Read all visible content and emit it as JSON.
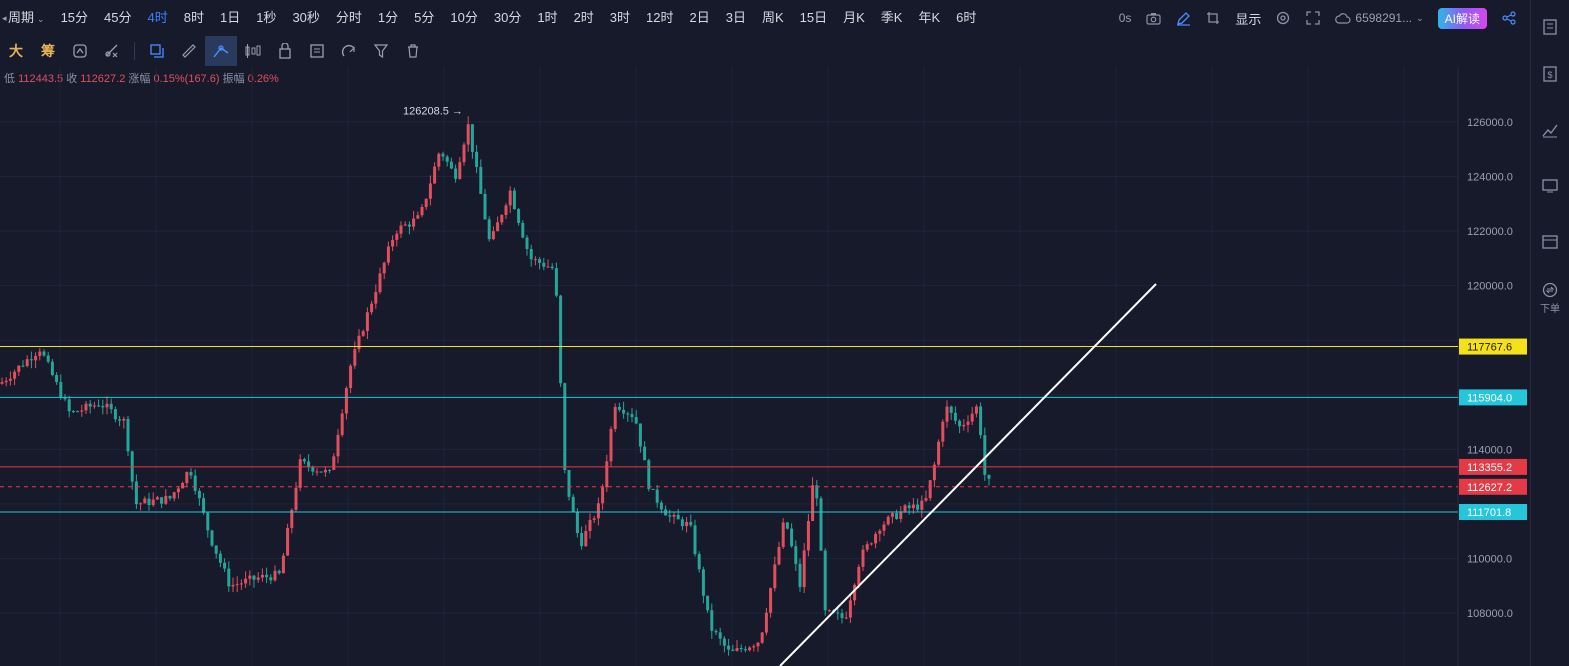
{
  "topbar": {
    "period_selector": "周期",
    "timeframes": [
      "15分",
      "45分",
      "4时",
      "8时",
      "1日",
      "1秒",
      "30秒",
      "分时",
      "1分",
      "5分",
      "10分",
      "30分",
      "1时",
      "2时",
      "3时",
      "12时",
      "2日",
      "3日",
      "周K",
      "15日",
      "月K",
      "季K",
      "年K",
      "6时"
    ],
    "active_timeframe": "4时",
    "countdown": "0s",
    "display_label": "显示",
    "account": "6598291...",
    "ai_button": "AI解读"
  },
  "toolbar": {
    "tools": [
      "大",
      "筹"
    ]
  },
  "info": {
    "low_label": "低",
    "low_value": "112443.5",
    "close_label": "收",
    "close_value": "112627.2",
    "change_label": "涨幅",
    "change_value": "0.15%(167.6)",
    "amplitude_label": "振幅",
    "amplitude_value": "0.26%"
  },
  "chart": {
    "high_marker": "126208.5",
    "y_ticks": [
      "126000.0",
      "124000.0",
      "122000.0",
      "120000.0",
      "114000.0",
      "110000.0",
      "108000.0"
    ],
    "levels": [
      {
        "value": "117767.6",
        "color": "#f5e11a"
      },
      {
        "value": "115904.0",
        "color": "#26c6da"
      },
      {
        "value": "113355.2",
        "color": "#e53946"
      },
      {
        "value": "112627.2",
        "color": "#e53946"
      },
      {
        "value": "111701.8",
        "color": "#26c6da"
      }
    ],
    "colors": {
      "up": "#e04f5f",
      "down": "#26a69a",
      "bg": "#161a2b"
    }
  },
  "rightbar": {
    "order_label": "下单"
  }
}
